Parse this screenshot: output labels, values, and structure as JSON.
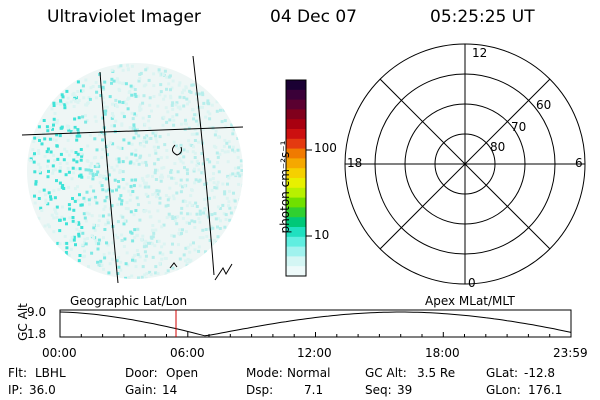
{
  "header": {
    "instrument": "Ultraviolet Imager",
    "date": "04 Dec 07",
    "time": "05:25:25 UT"
  },
  "colorbar": {
    "unit_label": "photon cm⁻²s⁻¹",
    "ticks": [
      "100",
      "10"
    ],
    "colors": [
      "#1a0033",
      "#3a0038",
      "#5a0030",
      "#80001c",
      "#a80010",
      "#cc1010",
      "#e43a10",
      "#f07a00",
      "#f5a800",
      "#f5d000",
      "#e8f000",
      "#b8f000",
      "#70e000",
      "#30d030",
      "#00c878",
      "#20e0c0",
      "#60eee0",
      "#a0f2ee",
      "#d4f6f4",
      "#eefafa"
    ]
  },
  "polar_grid": {
    "hour_labels": [
      "12",
      "18",
      "6",
      "0"
    ],
    "lat_labels": [
      "60",
      "70",
      "80"
    ]
  },
  "timeline": {
    "axis_label": "GC Alt",
    "y_max_label": "9.0",
    "y_min_label": "1.8",
    "left_title": "Geographic Lat/Lon",
    "right_title": "Apex MLat/MLT",
    "x_ticks": [
      "00:00",
      "06:00",
      "12:00",
      "18:00",
      "23:59"
    ],
    "current_time_fraction": 0.227
  },
  "status": {
    "row1": [
      {
        "label": "Flt:",
        "value": "LBHL"
      },
      {
        "label": "Door:",
        "value": "Open"
      },
      {
        "label": "Mode:",
        "value": "Normal"
      },
      {
        "label": "GC Alt:",
        "value": "3.5 Re"
      },
      {
        "label": "GLat:",
        "value": "-12.8"
      }
    ],
    "row2": [
      {
        "label": "IP:",
        "value": "36.0"
      },
      {
        "label": "Gain:",
        "value": "14"
      },
      {
        "label": "Dsp:",
        "value": "7.1"
      },
      {
        "label": "Seq:",
        "value": "39"
      },
      {
        "label": "GLon:",
        "value": "176.1"
      }
    ]
  }
}
